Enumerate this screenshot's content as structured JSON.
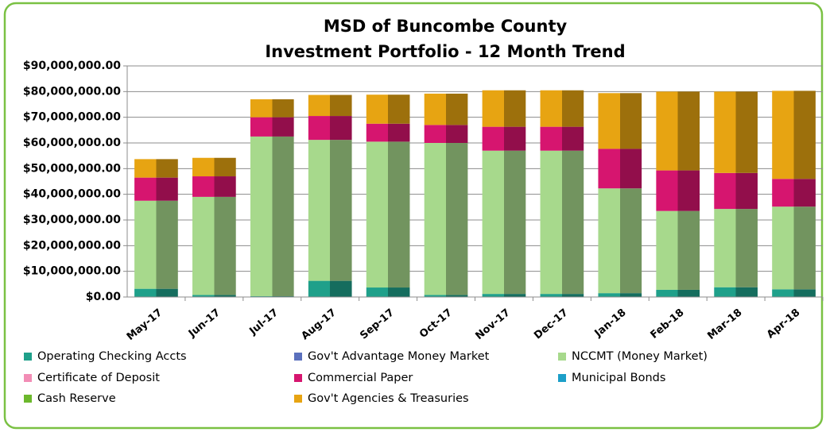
{
  "chart_data": {
    "type": "stacked_bar",
    "title": "MSD of Buncombe County",
    "subtitle": "Investment Portfolio - 12 Month Trend",
    "categories": [
      "May-17",
      "Jun-17",
      "Jul-17",
      "Aug-17",
      "Sep-17",
      "Oct-17",
      "Nov-17",
      "Dec-17",
      "Jan-18",
      "Feb-18",
      "Mar-18",
      "Apr-18"
    ],
    "series": [
      {
        "name": "Operating Checking Accts",
        "color": "#1fa08a",
        "values": [
          3200000,
          800000,
          300000,
          6300000,
          3700000,
          800000,
          1200000,
          1200000,
          1500000,
          2800000,
          3800000,
          3000000
        ]
      },
      {
        "name": "Gov't Advantage Money Market",
        "color": "#5b70bd",
        "values": [
          0,
          0,
          0,
          0,
          0,
          0,
          0,
          0,
          0,
          0,
          0,
          0
        ]
      },
      {
        "name": "NCCMT (Money Market)",
        "color": "#a7d98c",
        "values": [
          34300000,
          38200000,
          62200000,
          54900000,
          56800000,
          59200000,
          55800000,
          55800000,
          40800000,
          30700000,
          30500000,
          32200000
        ]
      },
      {
        "name": "Certificate of Deposit",
        "color": "#f28db5",
        "values": [
          0,
          0,
          0,
          0,
          0,
          0,
          0,
          0,
          0,
          0,
          0,
          0
        ]
      },
      {
        "name": "Commercial Paper",
        "color": "#d6156f",
        "values": [
          9000000,
          8000000,
          7500000,
          9300000,
          7000000,
          7000000,
          9300000,
          9300000,
          15400000,
          15800000,
          14000000,
          10800000
        ]
      },
      {
        "name": "Municipal Bonds",
        "color": "#1c9fc8",
        "values": [
          0,
          0,
          0,
          0,
          0,
          0,
          0,
          0,
          0,
          0,
          0,
          0
        ]
      },
      {
        "name": "Cash  Reserve",
        "color": "#6cb82c",
        "values": [
          0,
          0,
          0,
          0,
          0,
          0,
          0,
          0,
          0,
          0,
          0,
          0
        ]
      },
      {
        "name": "Gov't Agencies & Treasuries",
        "color": "#e7a412",
        "values": [
          7200000,
          7200000,
          7000000,
          8200000,
          11300000,
          12200000,
          14200000,
          14200000,
          21700000,
          30700000,
          31700000,
          34300000
        ]
      }
    ],
    "ylim": [
      0,
      90000000
    ],
    "yticks": [
      {
        "value": 0,
        "label": "$0.00"
      },
      {
        "value": 10000000,
        "label": "$10,000,000.00"
      },
      {
        "value": 20000000,
        "label": "$20,000,000.00"
      },
      {
        "value": 30000000,
        "label": "$30,000,000.00"
      },
      {
        "value": 40000000,
        "label": "$40,000,000.00"
      },
      {
        "value": 50000000,
        "label": "$50,000,000.00"
      },
      {
        "value": 60000000,
        "label": "$60,000,000.00"
      },
      {
        "value": 70000000,
        "label": "$70,000,000.00"
      },
      {
        "value": 80000000,
        "label": "$80,000,000.00"
      },
      {
        "value": 90000000,
        "label": "$90,000,000.00"
      }
    ],
    "grid": true,
    "legend": "bottom"
  }
}
